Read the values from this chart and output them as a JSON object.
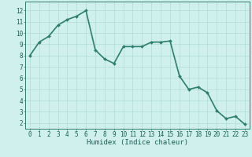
{
  "x": [
    0,
    1,
    2,
    3,
    4,
    5,
    6,
    7,
    8,
    9,
    10,
    11,
    12,
    13,
    14,
    15,
    16,
    17,
    18,
    19,
    20,
    21,
    22,
    23
  ],
  "y": [
    8.0,
    9.2,
    9.7,
    10.7,
    11.2,
    11.5,
    12.0,
    8.5,
    7.7,
    7.3,
    8.8,
    8.8,
    8.8,
    9.2,
    9.2,
    9.3,
    6.2,
    5.0,
    5.2,
    4.7,
    3.1,
    2.4,
    2.6,
    1.9
  ],
  "line_color": "#2e7d6e",
  "marker": "D",
  "marker_size": 2.0,
  "bg_color": "#cff0ec",
  "grid_color": "#b0ddd8",
  "axis_color": "#2e7d6e",
  "tick_label_color": "#1a5f55",
  "xlabel": "Humidex (Indice chaleur)",
  "xlim": [
    -0.5,
    23.5
  ],
  "ylim": [
    1.5,
    12.8
  ],
  "yticks": [
    2,
    3,
    4,
    5,
    6,
    7,
    8,
    9,
    10,
    11,
    12
  ],
  "xticks": [
    0,
    1,
    2,
    3,
    4,
    5,
    6,
    7,
    8,
    9,
    10,
    11,
    12,
    13,
    14,
    15,
    16,
    17,
    18,
    19,
    20,
    21,
    22,
    23
  ],
  "xlabel_fontsize": 6.5,
  "tick_fontsize": 5.5,
  "linewidth": 1.2
}
